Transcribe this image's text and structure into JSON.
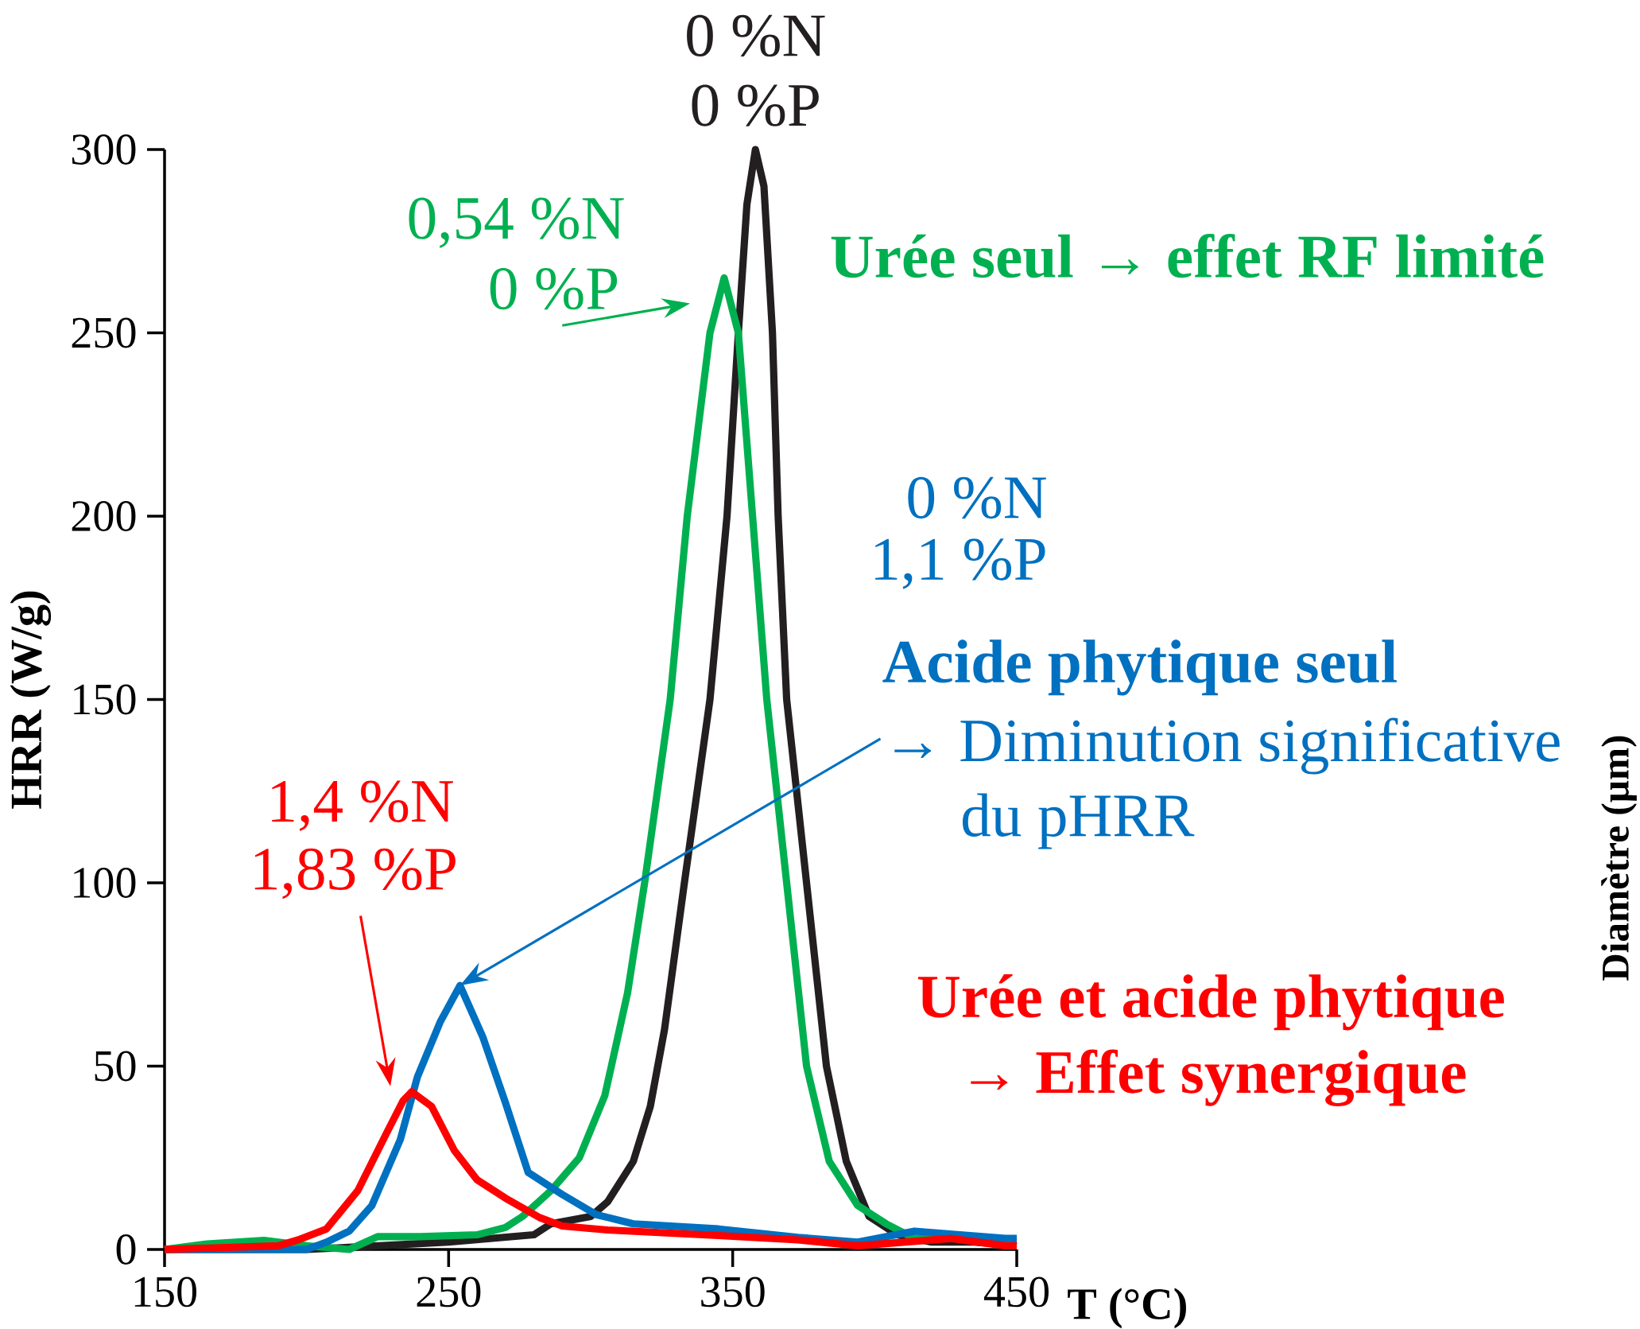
{
  "chart_data": {
    "type": "line",
    "xlabel": "T (°C)",
    "ylabel": "HRR (W/g)",
    "xlim": [
      150,
      450
    ],
    "ylim": [
      0,
      300
    ],
    "xticks": [
      150,
      250,
      350,
      450
    ],
    "yticks": [
      0,
      50,
      100,
      150,
      200,
      250,
      300
    ],
    "series": [
      {
        "color": "#231f20",
        "x": [
          150,
          200,
          250,
          280,
          286,
          300,
          306,
          315,
          321,
          326,
          333,
          342,
          348,
          352,
          355,
          358,
          361,
          364,
          366,
          369,
          376,
          383,
          390,
          398,
          408,
          420,
          435,
          450
        ],
        "values": [
          0,
          0,
          2,
          4,
          7,
          9,
          13,
          24,
          39,
          60,
          100,
          150,
          200,
          250,
          285,
          300,
          290,
          250,
          200,
          150,
          100,
          50,
          24,
          9,
          4,
          2,
          2,
          1
        ]
      },
      {
        "color": "#00b050",
        "x": [
          150,
          165,
          185,
          200,
          215,
          225,
          240,
          260,
          270,
          276,
          286,
          296,
          305,
          313,
          319,
          328,
          334,
          342,
          347,
          352,
          357,
          362,
          369,
          376,
          384,
          394,
          404,
          414,
          430,
          450
        ],
        "values": [
          0,
          1.5,
          2.5,
          1,
          0,
          3.5,
          3.5,
          4,
          6,
          9,
          16,
          25,
          42,
          70,
          100,
          150,
          200,
          250,
          265,
          250,
          200,
          150,
          100,
          50,
          24,
          12,
          7,
          3,
          3,
          2
        ]
      },
      {
        "color": "#0070c0",
        "x": [
          150,
          200,
          207,
          215,
          223,
          233,
          239,
          247,
          254,
          262,
          270,
          278,
          290,
          302,
          315,
          345,
          373,
          394,
          414,
          446,
          450
        ],
        "values": [
          0,
          0,
          2,
          5,
          12,
          30,
          47,
          62,
          72,
          58,
          40,
          21,
          15,
          9.5,
          7,
          5.6,
          3.3,
          2,
          5,
          3,
          3
        ]
      },
      {
        "color": "#ff0000",
        "x": [
          150,
          190,
          197,
          207,
          218,
          228,
          234,
          237,
          244,
          252,
          260,
          270,
          282,
          290,
          306,
          345,
          373,
          394,
          427,
          446,
          450
        ],
        "values": [
          0,
          1,
          2.6,
          5.6,
          16,
          31.5,
          40.6,
          43,
          39,
          27,
          19,
          14,
          8.7,
          6.4,
          5.3,
          3.8,
          2.6,
          1,
          3,
          1,
          1
        ]
      }
    ],
    "annotations": [
      "0 %N",
      "0 %P",
      "0,54 %N",
      "0 %P",
      "Urée seul → effet RF limité",
      "0 %N",
      "1,1 %P",
      "Acide phytique seul",
      "→ Diminution significative",
      "du pHRR",
      "1,4 %N",
      "1,83 %P",
      "Urée et acide phytique",
      "→ Effet synergique",
      "Diamètre (µm)"
    ]
  }
}
